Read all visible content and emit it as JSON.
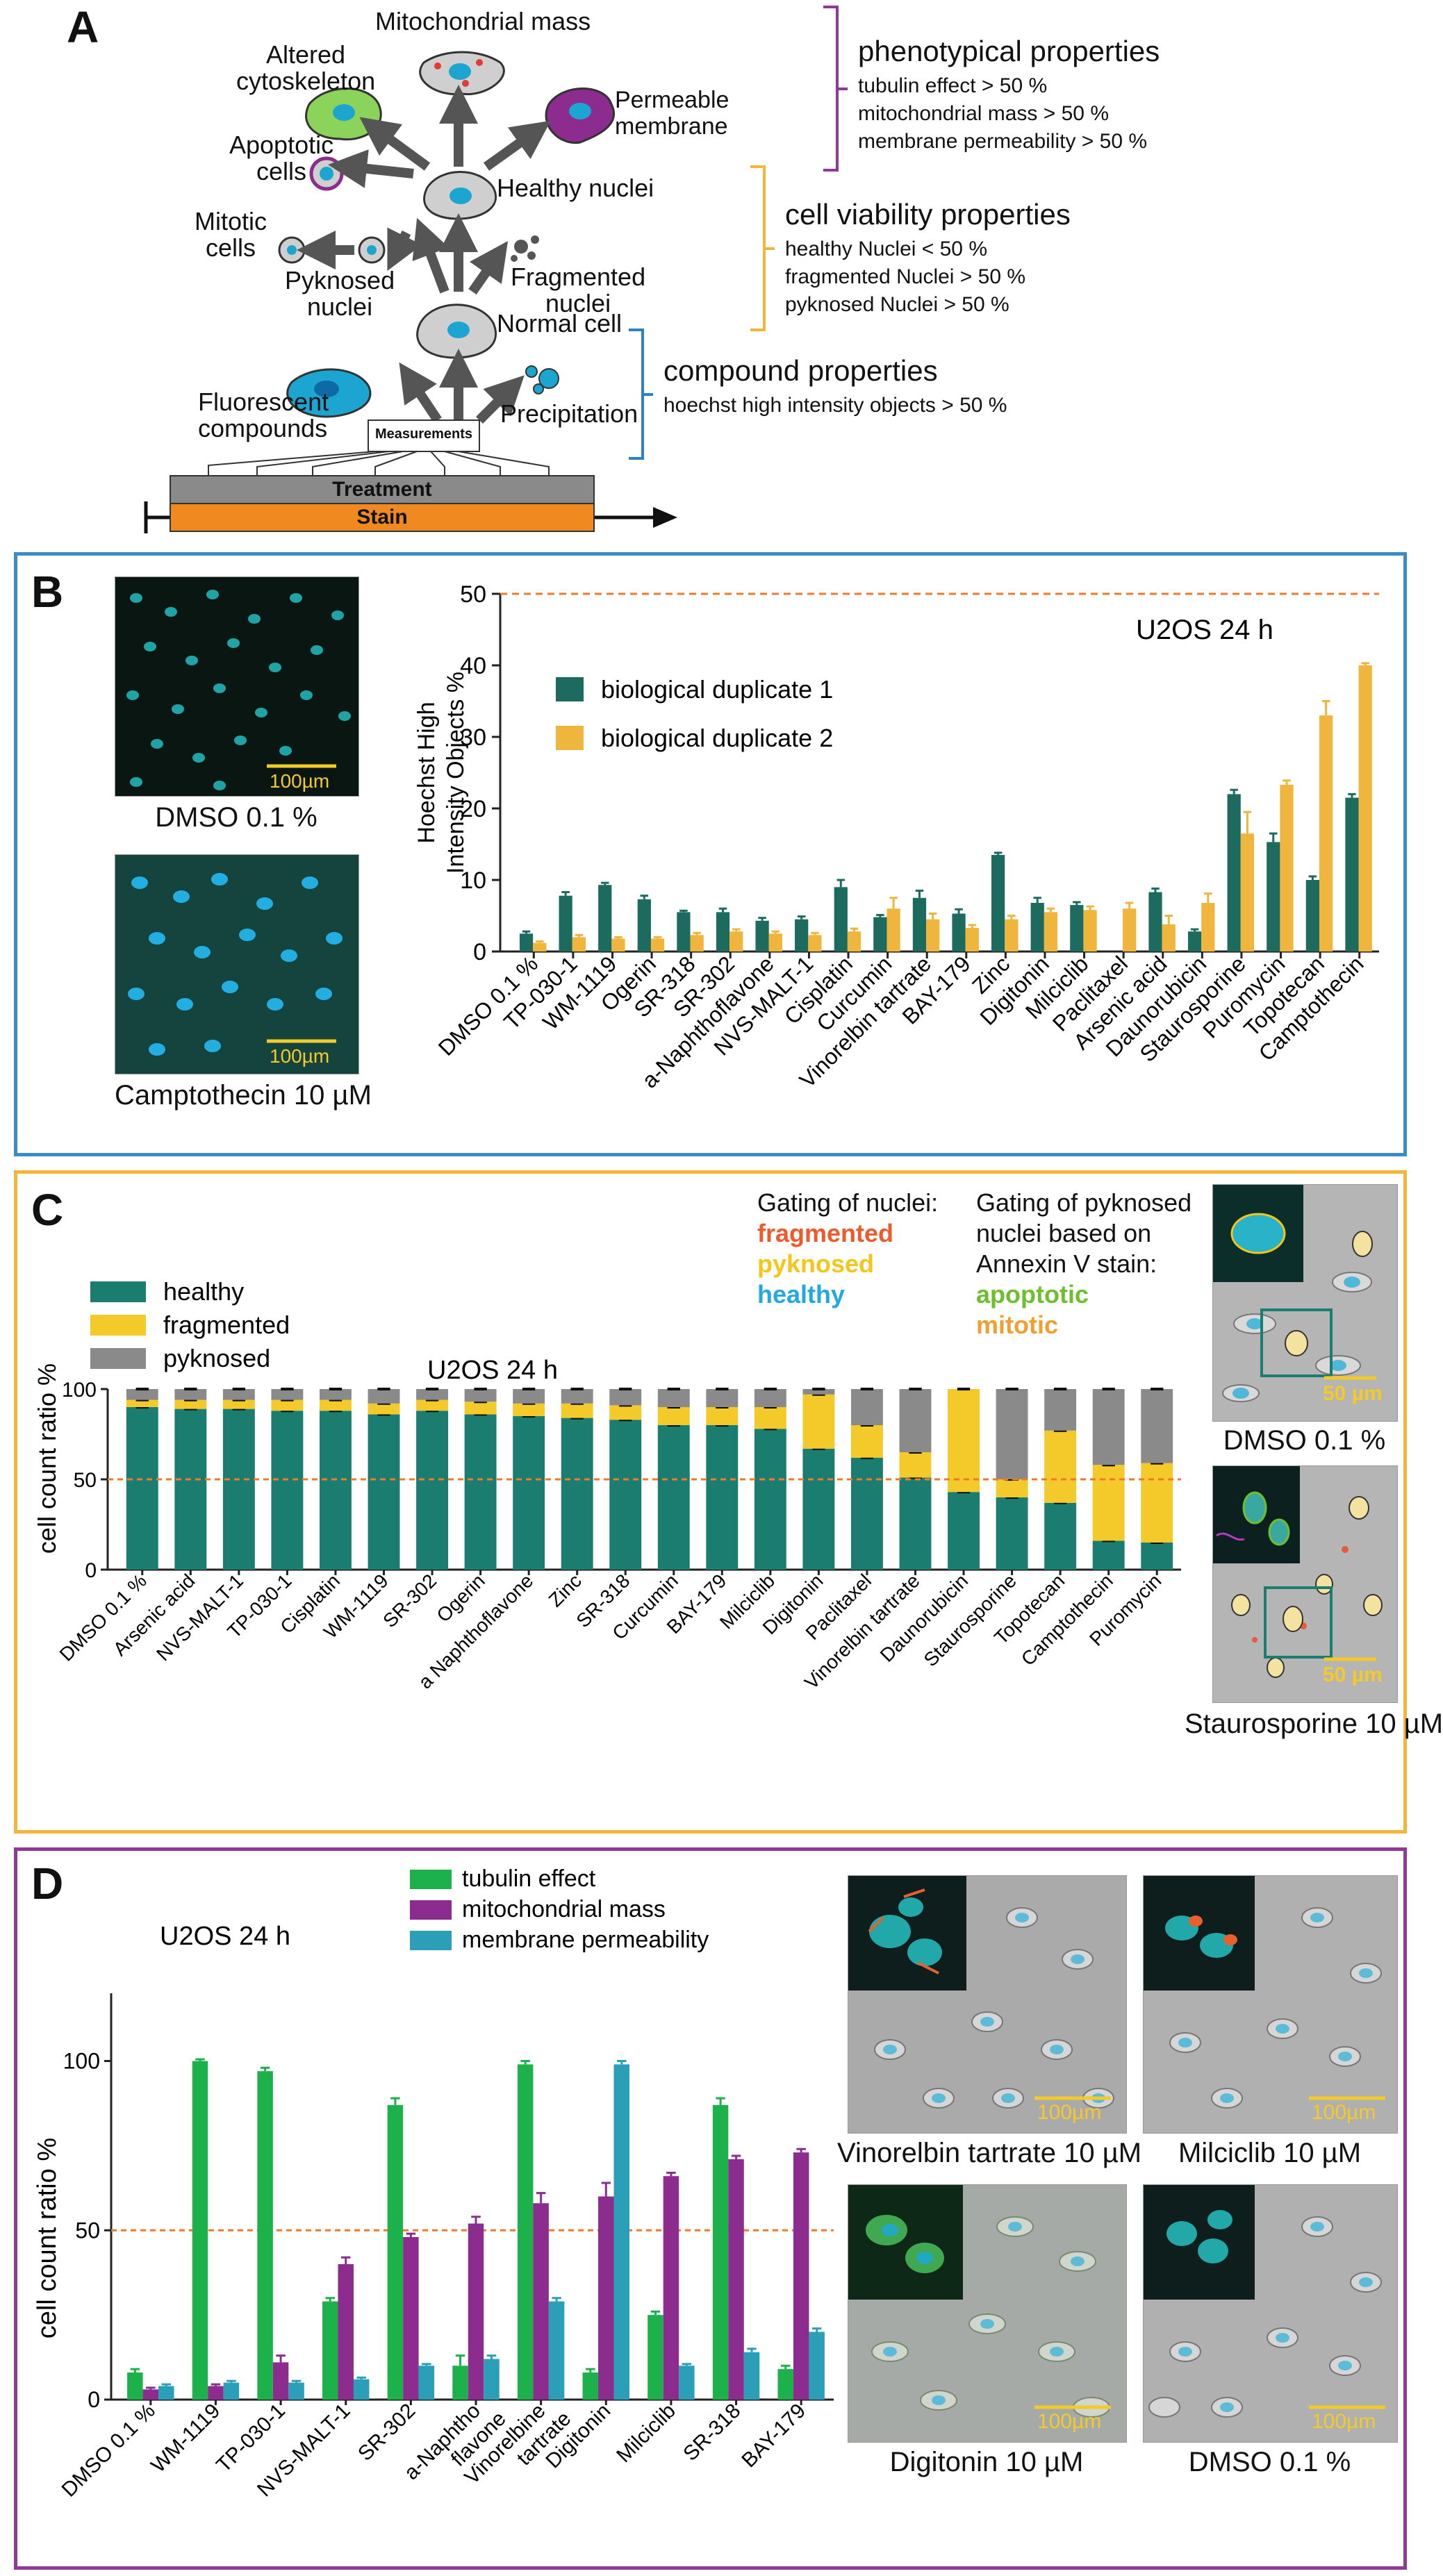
{
  "panelA": {
    "letter": "A",
    "cells": {
      "mito_mass": "Mitochondrial mass",
      "altered": [
        "Altered",
        "cytoskeleton"
      ],
      "permeable": [
        "Permeable",
        "membrane"
      ],
      "apoptotic": [
        "Apoptotic",
        "cells"
      ],
      "healthy_nuclei": "Healthy nuclei",
      "mitotic": [
        "Mitotic",
        "cells"
      ],
      "pyknosed": [
        "Pyknosed",
        "nuclei"
      ],
      "fragmented": [
        "Fragmented",
        "nuclei"
      ],
      "normal_cell": "Normal cell",
      "fluorescent": [
        "Fluorescent",
        "compounds"
      ],
      "precipitation": "Precipitation",
      "measurements": "Measurements",
      "treatment": "Treatment",
      "stain": "Stain"
    },
    "groups": [
      {
        "title": "phenotypical properties",
        "lines": [
          "tubulin effect > 50 %",
          "mitochondrial mass > 50 %",
          "membrane permeability > 50 %"
        ],
        "color": "#8e3a96"
      },
      {
        "title": "cell viability properties",
        "lines": [
          "healthy Nuclei < 50 %",
          "fragmented Nuclei > 50 %",
          "pyknosed Nuclei > 50 %"
        ],
        "color": "#f2b63a"
      },
      {
        "title": "compound properties",
        "lines": [
          "hoechst high intensity objects > 50 %"
        ],
        "color": "#2d82c4"
      }
    ]
  },
  "panelB": {
    "letter": "B",
    "images": [
      {
        "caption": "DMSO 0.1 %",
        "scale": "100µm"
      },
      {
        "caption": "Camptothecin 10 µM",
        "scale": "100µm"
      }
    ]
  },
  "panelC": {
    "letter": "C",
    "gating_nuclei": {
      "title": "Gating of nuclei:",
      "items": [
        {
          "label": "fragmented",
          "color": "#ee5a2b"
        },
        {
          "label": "pyknosed",
          "color": "#f5c518"
        },
        {
          "label": "healthy",
          "color": "#24a8e0"
        }
      ]
    },
    "gating_pyk": {
      "title": [
        "Gating of pyknosed",
        "nuclei based on",
        "Annexin V stain:"
      ],
      "items": [
        {
          "label": "apoptotic",
          "color": "#6cbf2e"
        },
        {
          "label": "mitotic",
          "color": "#f0a030"
        }
      ]
    },
    "images": [
      {
        "caption": "DMSO 0.1 %",
        "scale": "50 µm"
      },
      {
        "caption": "Staurosporine 10 µM",
        "scale": "50 µm"
      }
    ]
  },
  "panelD": {
    "letter": "D",
    "images": [
      {
        "caption": "Vinorelbin tartrate 10 µM",
        "scale": "100µm"
      },
      {
        "caption": "Milciclib 10 µM",
        "scale": "100µm"
      },
      {
        "caption": "Digitonin 10 µM",
        "scale": "100µm"
      },
      {
        "caption": "DMSO 0.1 %",
        "scale": "100µm"
      }
    ]
  },
  "chart_data": [
    {
      "id": "B",
      "type": "bar",
      "title": "U2OS 24 h",
      "ylabel": "Hoechst High Intensity Objects %",
      "ylabel_lines": [
        "Hoechst High",
        "Intensity Objects %"
      ],
      "ylim": [
        0,
        50
      ],
      "yticks": [
        0,
        10,
        20,
        30,
        40,
        50
      ],
      "threshold": 50,
      "legend_position": "top-left",
      "categories": [
        "DMSO 0.1 %",
        "TP-030-1",
        "WM-1119",
        "Ogerin",
        "SR-318",
        "SR-302",
        "a-Naphthoflavone",
        "NVS-MALT-1",
        "Cisplatin",
        "Curcumin",
        "Vinorelbin tartrate",
        "BAY-179",
        "Zinc",
        "Digitonin",
        "Milciclib",
        "Paclitaxel",
        "Arsenic acid",
        "Daunorubicin",
        "Staurosporine",
        "Puromycin",
        "Topotecan",
        "Camptothecin"
      ],
      "series": [
        {
          "name": "biological duplicate 1",
          "color": "#1d6b5f",
          "values": [
            2.5,
            7.8,
            9.3,
            7.3,
            5.5,
            5.5,
            4.3,
            4.5,
            9.0,
            4.8,
            7.5,
            5.3,
            13.5,
            6.8,
            6.5,
            0,
            8.3,
            2.8,
            22.0,
            15.3,
            10.0,
            21.5
          ],
          "errors": [
            0.3,
            0.5,
            0.3,
            0.5,
            0.2,
            0.5,
            0.4,
            0.4,
            1.0,
            0.3,
            1.0,
            0.6,
            0.3,
            0.7,
            0.4,
            0,
            0.5,
            0.3,
            0.6,
            1.2,
            0.5,
            0.5
          ]
        },
        {
          "name": "biological duplicate 2",
          "color": "#efb53c",
          "values": [
            1.2,
            2.0,
            1.8,
            1.8,
            2.3,
            2.8,
            2.5,
            2.3,
            2.8,
            6.0,
            4.5,
            3.3,
            4.5,
            5.5,
            5.8,
            6.0,
            3.8,
            6.8,
            16.5,
            23.3,
            33.0,
            40.0
          ],
          "errors": [
            0.2,
            0.3,
            0.2,
            0.2,
            0.3,
            0.3,
            0.3,
            0.3,
            0.4,
            1.5,
            0.8,
            0.4,
            0.5,
            0.5,
            0.5,
            0.8,
            1.2,
            1.3,
            3.0,
            0.6,
            2.0,
            0.3
          ]
        }
      ]
    },
    {
      "id": "C",
      "type": "bar",
      "stacked": true,
      "title": "U2OS 24 h",
      "ylabel": "cell count ratio %",
      "ylim": [
        0,
        100
      ],
      "yticks": [
        0,
        50,
        100
      ],
      "threshold": 50,
      "legend_position": "top-left",
      "categories": [
        "DMSO 0.1 %",
        "Arsenic acid",
        "NVS-MALT-1",
        "TP-030-1",
        "Cisplatin",
        "WM-1119",
        "SR-302",
        "Ogerin",
        "a Naphthoflavone",
        "Zinc",
        "SR-318",
        "Curcumin",
        "BAY-179",
        "Milciclib",
        "Digitonin",
        "Paclitaxel",
        "Vinorelbin tartrate",
        "Daunorubicin",
        "Staurosporine",
        "Topotecan",
        "Camptothecin",
        "Puromycin"
      ],
      "series": [
        {
          "name": "healthy",
          "color": "#1a7d6f",
          "values": [
            90,
            89,
            89,
            88,
            88,
            86,
            88,
            86,
            85,
            84,
            83,
            80,
            80,
            78,
            67,
            62,
            51,
            43,
            40,
            37,
            16,
            15
          ]
        },
        {
          "name": "fragmented",
          "color": "#f4c92a",
          "values": [
            4,
            5,
            5,
            6,
            6,
            6,
            6,
            7,
            7,
            8,
            8,
            10,
            10,
            12,
            30,
            18,
            14,
            57,
            10,
            40,
            42,
            44
          ]
        },
        {
          "name": "pyknosed",
          "color": "#8a8a8a",
          "values": [
            6,
            6,
            6,
            6,
            6,
            8,
            6,
            7,
            8,
            8,
            9,
            10,
            10,
            10,
            3,
            20,
            35,
            0,
            50,
            23,
            42,
            41
          ]
        }
      ]
    },
    {
      "id": "D",
      "type": "bar",
      "title": "U2OS 24 h",
      "ylabel": "cell count ratio %",
      "ylim": [
        0,
        120
      ],
      "yticks": [
        0,
        50,
        100
      ],
      "threshold": 50,
      "legend_position": "top-right",
      "categories": [
        "DMSO 0.1 %",
        "WM-1119",
        "TP-030-1",
        "NVS-MALT-1",
        "SR-302",
        "a-Naphtho flavone",
        "Vinorelbine tartrate",
        "Digitonin",
        "Milciclib",
        "SR-318",
        "BAY-179"
      ],
      "category_lines": [
        [
          "DMSO 0.1 %"
        ],
        [
          "WM-1119"
        ],
        [
          "TP-030-1"
        ],
        [
          "NVS-MALT-1"
        ],
        [
          "SR-302"
        ],
        [
          "a-Naphtho",
          "flavone"
        ],
        [
          "Vinorelbine",
          "tartrate"
        ],
        [
          "Digitonin"
        ],
        [
          "Milciclib"
        ],
        [
          "SR-318"
        ],
        [
          "BAY-179"
        ]
      ],
      "series": [
        {
          "name": "tubulin effect",
          "color": "#1db14b",
          "values": [
            8,
            100,
            97,
            29,
            87,
            10,
            99,
            8,
            25,
            87,
            9
          ],
          "errors": [
            1,
            0.5,
            1,
            1,
            2,
            3,
            1,
            1,
            1,
            2,
            1
          ]
        },
        {
          "name": "mitochondrial mass",
          "color": "#8b2c8e",
          "values": [
            3,
            4,
            11,
            40,
            48,
            52,
            58,
            60,
            66,
            71,
            73
          ],
          "errors": [
            0.5,
            0.5,
            2,
            2,
            1,
            2,
            3,
            4,
            1,
            1,
            1
          ]
        },
        {
          "name": "membrane permeability",
          "color": "#2b9fb8",
          "values": [
            4,
            5,
            5,
            6,
            10,
            12,
            29,
            99,
            10,
            14,
            20
          ],
          "errors": [
            0.5,
            0.5,
            0.5,
            0.5,
            0.5,
            1,
            1,
            1,
            0.5,
            1,
            1
          ]
        }
      ]
    }
  ]
}
